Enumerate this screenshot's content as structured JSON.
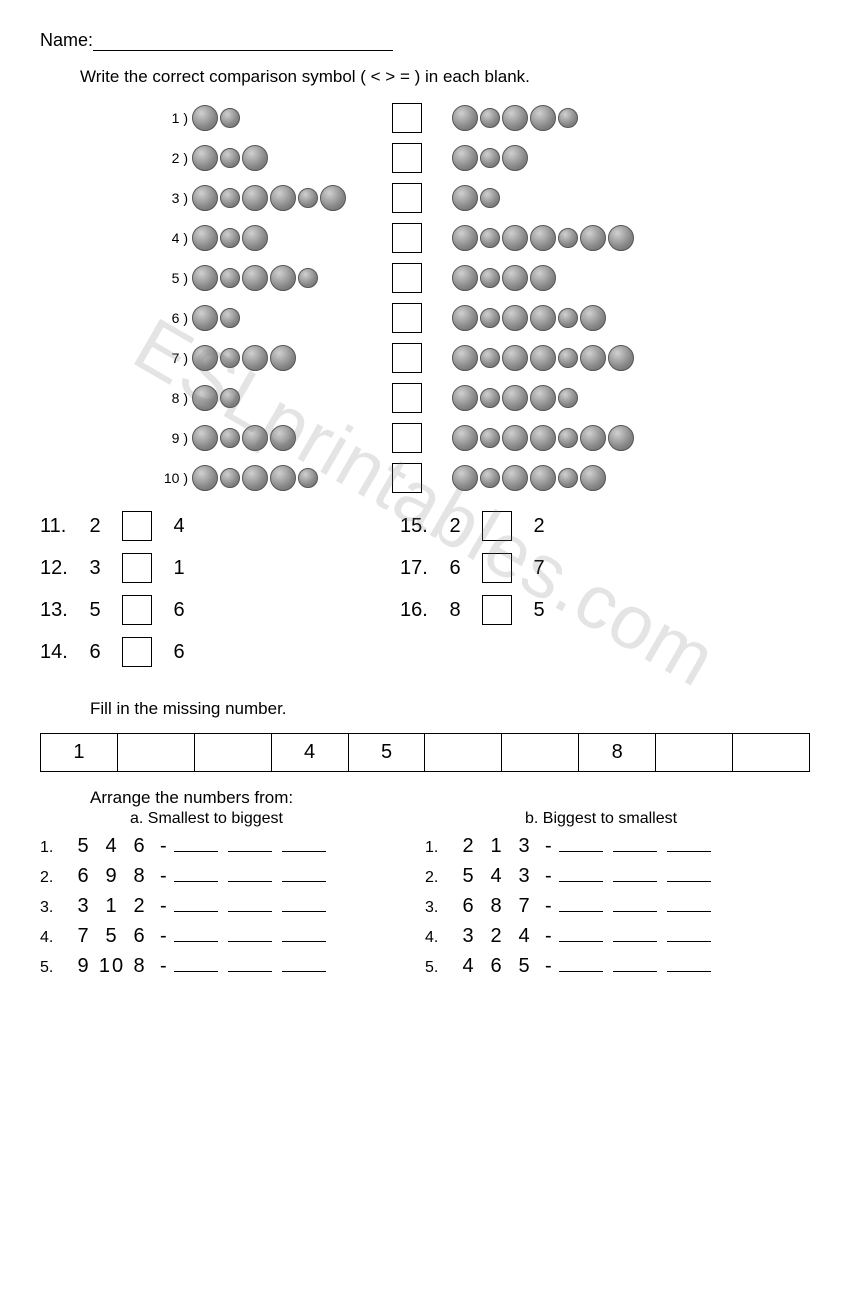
{
  "watermark": "ESLprintables.com",
  "name_label": "Name:",
  "instruction1": "Write the correct comparison symbol ( <  >  = ) in each blank.",
  "coin_rows": [
    {
      "n": "1 )",
      "left": [
        1,
        1
      ],
      "right": [
        1,
        1,
        1,
        1,
        1
      ]
    },
    {
      "n": "2 )",
      "left": [
        1,
        1,
        1
      ],
      "right": [
        1,
        1,
        1
      ]
    },
    {
      "n": "3 )",
      "left": [
        1,
        1,
        1,
        1,
        1,
        1
      ],
      "right": [
        1,
        1
      ]
    },
    {
      "n": "4 )",
      "left": [
        1,
        1,
        1
      ],
      "right": [
        1,
        1,
        1,
        1,
        1,
        1,
        1
      ]
    },
    {
      "n": "5 )",
      "left": [
        1,
        1,
        1,
        1,
        1
      ],
      "right": [
        1,
        1,
        1,
        1
      ]
    },
    {
      "n": "6 )",
      "left": [
        1,
        1
      ],
      "right": [
        1,
        1,
        1,
        1,
        1,
        1
      ]
    },
    {
      "n": "7 )",
      "left": [
        1,
        1,
        1,
        1
      ],
      "right": [
        1,
        1,
        1,
        1,
        1,
        1,
        1
      ]
    },
    {
      "n": "8 )",
      "left": [
        1,
        1
      ],
      "right": [
        1,
        1,
        1,
        1,
        1
      ]
    },
    {
      "n": "9 )",
      "left": [
        1,
        1,
        1,
        1
      ],
      "right": [
        1,
        1,
        1,
        1,
        1,
        1,
        1
      ]
    },
    {
      "n": "10 )",
      "left": [
        1,
        1,
        1,
        1,
        1
      ],
      "right": [
        1,
        1,
        1,
        1,
        1,
        1
      ]
    }
  ],
  "num_compare_left": [
    {
      "q": "11.",
      "a": "2",
      "b": "4"
    },
    {
      "q": "12.",
      "a": "3",
      "b": "1"
    },
    {
      "q": "13.",
      "a": "5",
      "b": "6"
    },
    {
      "q": "14.",
      "a": "6",
      "b": "6"
    }
  ],
  "num_compare_right": [
    {
      "q": "15.",
      "a": "2",
      "b": "2"
    },
    {
      "q": "17.",
      "a": "6",
      "b": "7"
    },
    {
      "q": "16.",
      "a": "8",
      "b": "5"
    }
  ],
  "instruction2": "Fill in the missing number.",
  "fill_cells": [
    "1",
    "",
    "",
    "4",
    "5",
    "",
    "",
    "8",
    "",
    ""
  ],
  "instruction3": "Arrange the numbers from:",
  "subhead_a": "a. Smallest to biggest",
  "subhead_b": "b. Biggest to smallest",
  "arrange_a": [
    {
      "q": "1.",
      "vals": [
        "5",
        "4",
        "6"
      ]
    },
    {
      "q": "2.",
      "vals": [
        "6",
        "9",
        "8"
      ]
    },
    {
      "q": "3.",
      "vals": [
        "3",
        "1",
        "2"
      ]
    },
    {
      "q": "4.",
      "vals": [
        "7",
        "5",
        "6"
      ]
    },
    {
      "q": "5.",
      "vals": [
        "9",
        "10",
        "8"
      ]
    }
  ],
  "arrange_b": [
    {
      "q": "1.",
      "vals": [
        "2",
        "1",
        "3"
      ]
    },
    {
      "q": "2.",
      "vals": [
        "5",
        "4",
        "3"
      ]
    },
    {
      "q": "3.",
      "vals": [
        "6",
        "8",
        "7"
      ]
    },
    {
      "q": "4.",
      "vals": [
        "3",
        "2",
        "4"
      ]
    },
    {
      "q": "5.",
      "vals": [
        "4",
        "6",
        "5"
      ]
    }
  ]
}
